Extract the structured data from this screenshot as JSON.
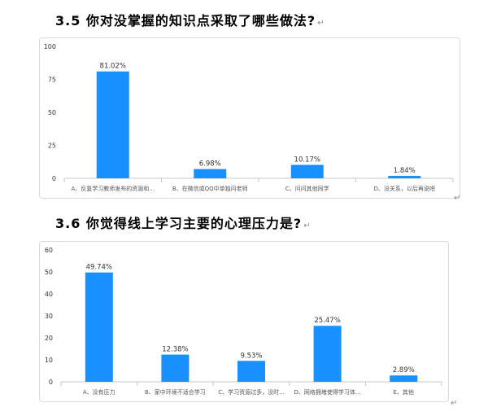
{
  "page": {
    "section_35_title": "3.5 你对没掌握的知识点采取了哪些做法?",
    "section_36_title": "3.6 你觉得线上学习主要的心理压力是?",
    "para_mark": "↵"
  },
  "colors": {
    "bar": "#1890ff",
    "axis": "#c7c7c7",
    "grid": "#eeeeee",
    "label": "#333333"
  },
  "chart_data": [
    {
      "type": "bar",
      "title": "3.5 你对没掌握的知识点采取了哪些做法?",
      "categories": [
        "A、反复学习教师发布的资源和...",
        "B、在微信或QQ中单独问老师",
        "C、问问其他同学",
        "D、没关系，以后再说吧"
      ],
      "values": [
        81.02,
        6.98,
        10.17,
        1.84
      ],
      "data_labels": [
        "81.02%",
        "6.98%",
        "10.17%",
        "1.84%"
      ],
      "ylim": [
        0,
        100
      ],
      "yticks": [
        0,
        25,
        50,
        75,
        100
      ],
      "xlabel": "",
      "ylabel": ""
    },
    {
      "type": "bar",
      "title": "3.6 你觉得线上学习主要的心理压力是?",
      "categories": [
        "A、没有压力",
        "B、家中环境不适合学习",
        "C、学习资源过多，没时...",
        "D、网络拥堵使得学习体...",
        "E、其他"
      ],
      "values": [
        49.74,
        12.38,
        9.53,
        25.47,
        2.89
      ],
      "data_labels": [
        "49.74%",
        "12.38%",
        "9.53%",
        "25.47%",
        "2.89%"
      ],
      "ylim": [
        0,
        60
      ],
      "yticks": [
        0,
        10,
        20,
        30,
        40,
        50,
        60
      ],
      "xlabel": "",
      "ylabel": ""
    }
  ]
}
